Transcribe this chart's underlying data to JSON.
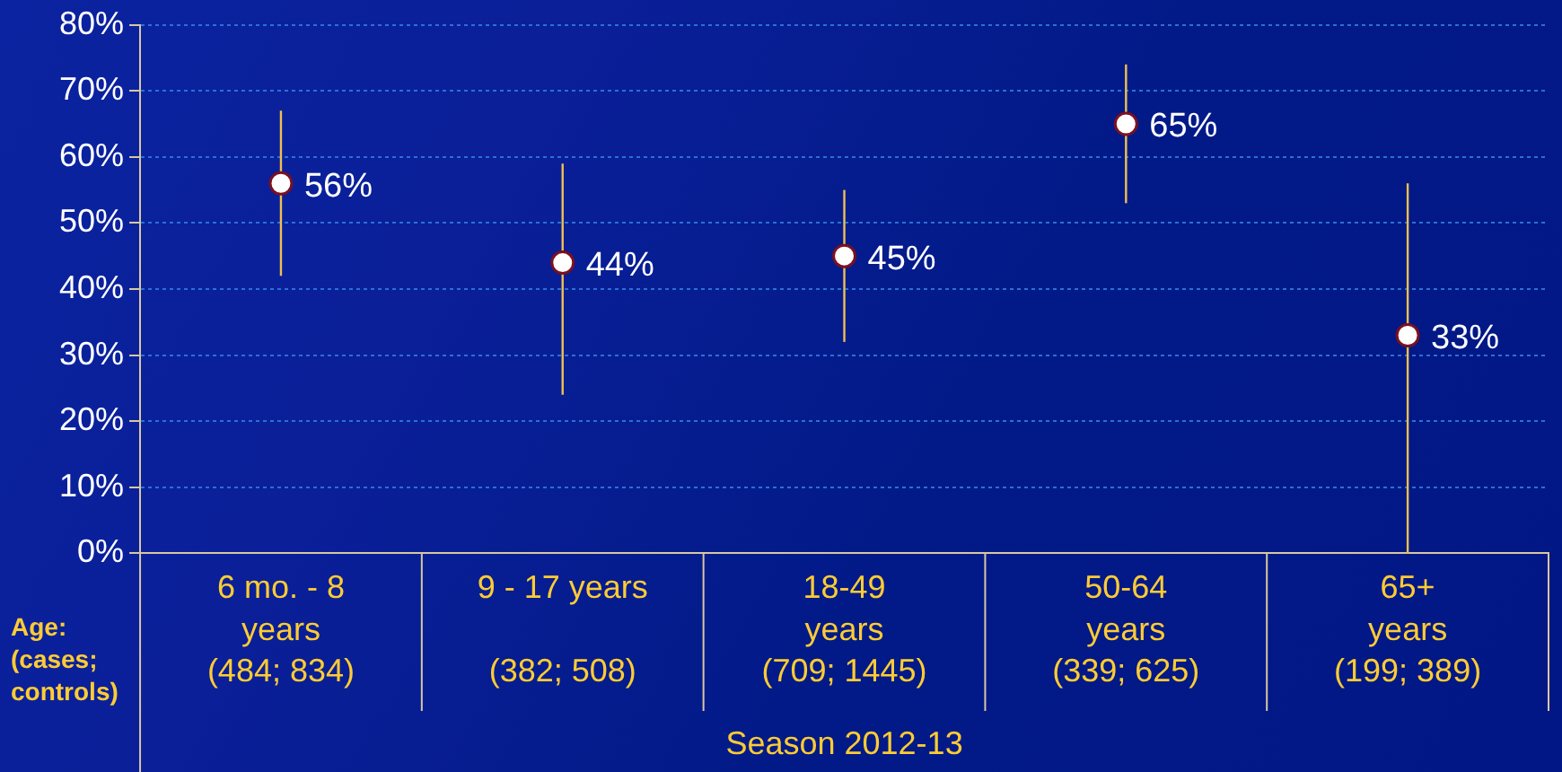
{
  "chart_data": {
    "type": "scatter",
    "xlabel": "Season 2012-13",
    "annotations": [
      "Age: (cases; controls)"
    ],
    "categories": [
      "6 mo. - 8\nyears\n(484; 834)",
      "9 - 17 years\n\n(382; 508)",
      "18-49\nyears\n(709; 1445)",
      "50-64\nyears\n(339; 625)",
      "65+\nyears\n(199; 389)"
    ],
    "values": [
      56,
      44,
      45,
      65,
      33
    ],
    "errors": [
      [
        42,
        67
      ],
      [
        24,
        59
      ],
      [
        32,
        55
      ],
      [
        53,
        74
      ],
      [
        0,
        56
      ]
    ],
    "value_labels": [
      "56%",
      "44%",
      "45%",
      "65%",
      "33%"
    ],
    "color": "#ffffff",
    "ylim": [
      0,
      80
    ],
    "yticks": [
      {
        "value": 0,
        "label": "0%"
      },
      {
        "value": 10,
        "label": "10%"
      },
      {
        "value": 20,
        "label": "20%"
      },
      {
        "value": 30,
        "label": "30%"
      },
      {
        "value": 40,
        "label": "40%"
      },
      {
        "value": 50,
        "label": "50%"
      },
      {
        "value": 60,
        "label": "60%"
      },
      {
        "value": 70,
        "label": "70%"
      },
      {
        "value": 80,
        "label": "80%"
      }
    ],
    "grid": "y",
    "legend": false,
    "marker": "circle"
  }
}
